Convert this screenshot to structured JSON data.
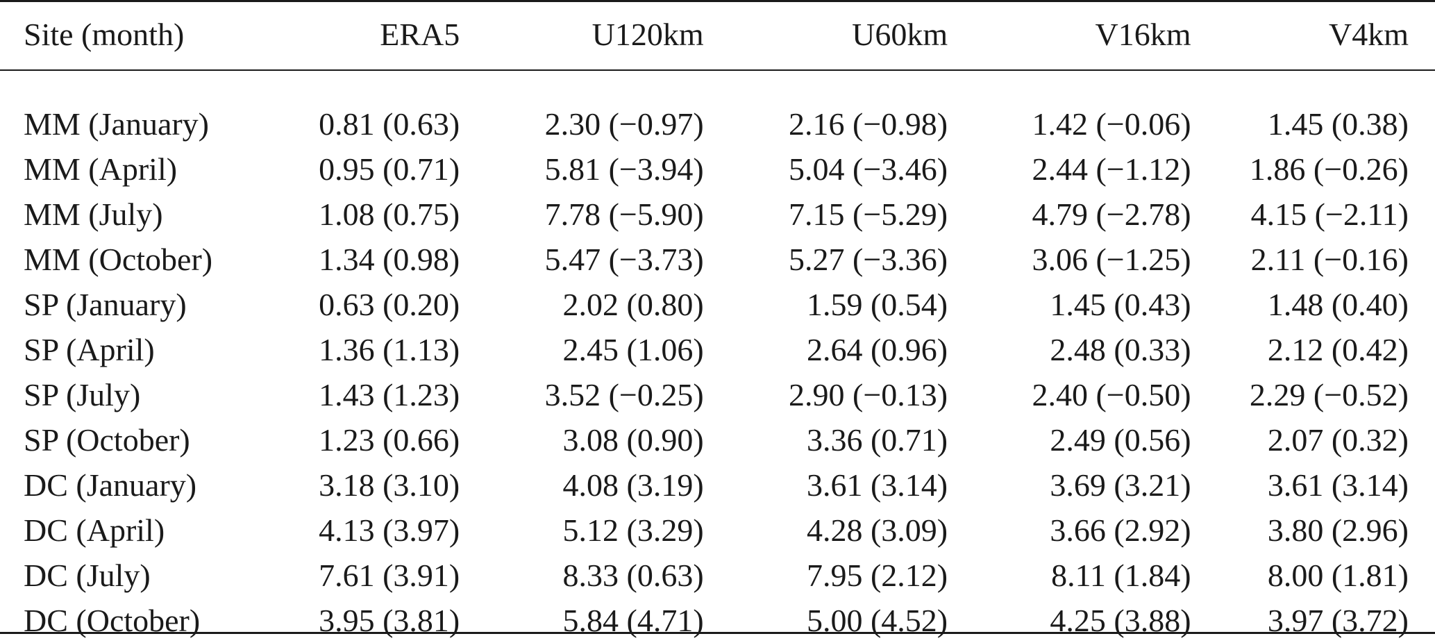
{
  "table": {
    "headers": [
      "Site (month)",
      "ERA5",
      "U120km",
      "U60km",
      "V16km",
      "V4km"
    ],
    "rows": [
      [
        "MM (January)",
        "0.81 (0.63)",
        "2.30 (−0.97)",
        "2.16 (−0.98)",
        "1.42 (−0.06)",
        "1.45 (0.38)"
      ],
      [
        "MM (April)",
        "0.95 (0.71)",
        "5.81 (−3.94)",
        "5.04 (−3.46)",
        "2.44 (−1.12)",
        "1.86 (−0.26)"
      ],
      [
        "MM (July)",
        "1.08 (0.75)",
        "7.78 (−5.90)",
        "7.15 (−5.29)",
        "4.79 (−2.78)",
        "4.15 (−2.11)"
      ],
      [
        "MM (October)",
        "1.34 (0.98)",
        "5.47 (−3.73)",
        "5.27 (−3.36)",
        "3.06 (−1.25)",
        "2.11 (−0.16)"
      ],
      [
        "SP (January)",
        "0.63 (0.20)",
        "2.02 (0.80)",
        "1.59 (0.54)",
        "1.45 (0.43)",
        "1.48 (0.40)"
      ],
      [
        "SP (April)",
        "1.36 (1.13)",
        "2.45 (1.06)",
        "2.64 (0.96)",
        "2.48 (0.33)",
        "2.12 (0.42)"
      ],
      [
        "SP (July)",
        "1.43 (1.23)",
        "3.52 (−0.25)",
        "2.90 (−0.13)",
        "2.40 (−0.50)",
        "2.29 (−0.52)"
      ],
      [
        "SP (October)",
        "1.23 (0.66)",
        "3.08 (0.90)",
        "3.36 (0.71)",
        "2.49 (0.56)",
        "2.07 (0.32)"
      ],
      [
        "DC (January)",
        "3.18 (3.10)",
        "4.08 (3.19)",
        "3.61 (3.14)",
        "3.69 (3.21)",
        "3.61 (3.14)"
      ],
      [
        "DC (April)",
        "4.13 (3.97)",
        "5.12 (3.29)",
        "4.28 (3.09)",
        "3.66 (2.92)",
        "3.80 (2.96)"
      ],
      [
        "DC (July)",
        "7.61 (3.91)",
        "8.33 (0.63)",
        "7.95 (2.12)",
        "8.11 (1.84)",
        "8.00 (1.81)"
      ],
      [
        "DC (October)",
        "3.95 (3.81)",
        "5.84 (4.71)",
        "5.00 (4.52)",
        "4.25 (3.88)",
        "3.97 (3.72)"
      ]
    ]
  }
}
